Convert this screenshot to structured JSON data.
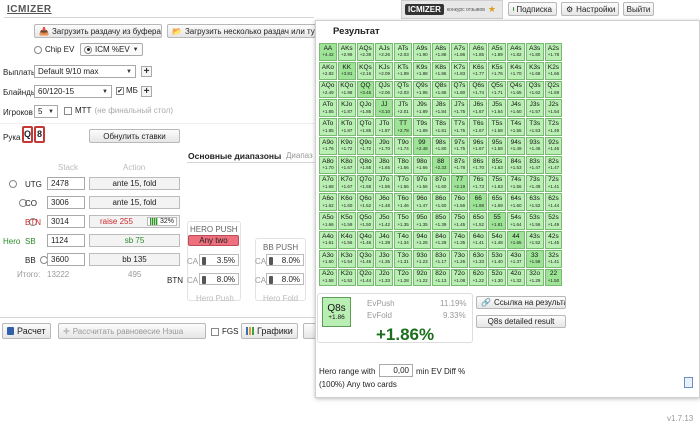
{
  "app": {
    "logo": "ICMIZER",
    "version": "v1.7.13"
  },
  "toolbar": {
    "load_clipboard": "Загрузить раздачу из буфера",
    "load_many": "Загрузить несколько раздач или тур"
  },
  "header": {
    "brand_logo": "ICMIZER",
    "brand_sub": "конкурс отзывов",
    "subscribe": "Подписка",
    "settings": "Настройки",
    "exit": "Выйти"
  },
  "settings": {
    "mode_chip": "Chip EV",
    "mode_icm": "ICM %EV",
    "payouts_label": "Выплаты",
    "payouts_value": "Default 9/10 max",
    "blinds_label": "Блайнды",
    "blinds_value": "60/120-15",
    "mb_label": "МБ",
    "players_label": "Игроков",
    "players_value": "5",
    "mtt_label": "MTT",
    "mtt_hint": "(не финальный стол)",
    "hand_label": "Рука",
    "reset_bets": "Обнулить ставки"
  },
  "hand_cards": [
    "Q",
    "8"
  ],
  "tabs": {
    "main_ranges": "Основные диапазоны",
    "second": "Диапаз"
  },
  "table": {
    "col_stack": "Stack",
    "col_action": "Action",
    "rows": [
      {
        "pos": "UTG",
        "stack": "2478",
        "action": "ante 15, fold"
      },
      {
        "pos": "CO",
        "stack": "3006",
        "action": "ante 15, fold"
      },
      {
        "pos": "BTN",
        "stack": "3014",
        "action": "raise 255",
        "pct": "32%"
      },
      {
        "hero": "Hero",
        "pos": "SB",
        "stack": "1124",
        "action": "sb 75"
      },
      {
        "pos": "BB",
        "stack": "3600",
        "action": "bb 135"
      }
    ],
    "total_label": "Итого:",
    "total_value": "13222",
    "total_other": "495"
  },
  "push": {
    "hero_title": "HERO PUSH",
    "hero_range": "Any two",
    "ca_label": "CA",
    "hero_ca": "3.5%",
    "btn_label": "BTN",
    "btn_ca": "8.0%",
    "hero_foot": "Hero Push",
    "bb_title": "BB PUSH",
    "bb_ca": "8.0%",
    "bb_ca2": "8.0%",
    "bb_foot": "Hero Fold"
  },
  "bottom": {
    "calc": "Расчет",
    "nash": "Рассчитать равновесие Нэша",
    "fgs": "FGS",
    "graphs": "Графики"
  },
  "result": {
    "title": "Результат",
    "hand": "Q8s",
    "hand_diff": "+1.86",
    "ev_push_label": "EvPush",
    "ev_push_value": "11.19%",
    "ev_fold_label": "EvFold",
    "ev_fold_value": "9.33%",
    "big_value": "+1.86%",
    "link_button": "Ссылка на результат",
    "detail_button": "Q8s detailed result",
    "range_label": "Hero range with",
    "range_value": "0,00",
    "range_suffix": "min EV Diff %",
    "range_result": "(100%) Any two cards"
  },
  "hand_grid": [
    [
      [
        "AA",
        "+4.42"
      ],
      [
        "AKs",
        "+2.99"
      ],
      [
        "AQs",
        "+2.39"
      ],
      [
        "AJs",
        "+2.26"
      ],
      [
        "ATs",
        "+2.03"
      ],
      [
        "A9s",
        "+1.90"
      ],
      [
        "A8s",
        "+1.88"
      ],
      [
        "A7s",
        "+1.86"
      ],
      [
        "A6s",
        "+1.85"
      ],
      [
        "A5s",
        "+1.89"
      ],
      [
        "A4s",
        "+1.82"
      ],
      [
        "A3s",
        "+1.80"
      ],
      [
        "A2s",
        "+1.78"
      ]
    ],
    [
      [
        "AKo",
        "+2.82"
      ],
      [
        "KK",
        "+3.81"
      ],
      [
        "KQs",
        "+2.16"
      ],
      [
        "KJs",
        "+2.09"
      ],
      [
        "KTs",
        "+1.99"
      ],
      [
        "K9s",
        "+1.88"
      ],
      [
        "K8s",
        "+1.86"
      ],
      [
        "K7s",
        "+1.83"
      ],
      [
        "K6s",
        "+1.77"
      ],
      [
        "K5s",
        "+1.76"
      ],
      [
        "K4s",
        "+1.70"
      ],
      [
        "K3s",
        "+1.68"
      ],
      [
        "K2s",
        "+1.66"
      ]
    ],
    [
      [
        "AQo",
        "+2.49"
      ],
      [
        "KQo",
        "+1.98"
      ],
      [
        "QQ",
        "+3.45"
      ],
      [
        "QJs",
        "+2.06"
      ],
      [
        "QTs",
        "+2.03"
      ],
      [
        "Q9s",
        "+1.95"
      ],
      [
        "Q8s",
        "+1.86"
      ],
      [
        "Q7s",
        "+1.80"
      ],
      [
        "Q6s",
        "+1.74"
      ],
      [
        "Q5s",
        "+1.71"
      ],
      [
        "Q4s",
        "+1.65"
      ],
      [
        "Q3s",
        "+1.62"
      ],
      [
        "Q2s",
        "+1.59"
      ]
    ],
    [
      [
        "ATo",
        "+1.85"
      ],
      [
        "KJo",
        "+1.87"
      ],
      [
        "QJo",
        "+1.85"
      ],
      [
        "JJ",
        "+3.10"
      ],
      [
        "JTs",
        "+2.01"
      ],
      [
        "J9s",
        "+1.89"
      ],
      [
        "J8s",
        "+1.84"
      ],
      [
        "J7s",
        "+1.75"
      ],
      [
        "J6s",
        "+1.67"
      ],
      [
        "J5s",
        "+1.64"
      ],
      [
        "J4s",
        "+1.60"
      ],
      [
        "J3s",
        "+1.57"
      ],
      [
        "J2s",
        "+1.54"
      ]
    ],
    [
      [
        "ATo",
        "+1.85"
      ],
      [
        "KTo",
        "+1.87"
      ],
      [
        "QTo",
        "+1.85"
      ],
      [
        "JTo",
        "+1.87"
      ],
      [
        "TT",
        "+2.78"
      ],
      [
        "T9s",
        "+1.89"
      ],
      [
        "T8s",
        "+1.81"
      ],
      [
        "T7s",
        "+1.75"
      ],
      [
        "T6s",
        "+1.67"
      ],
      [
        "T5s",
        "+1.58"
      ],
      [
        "T4s",
        "+1.55"
      ],
      [
        "T3s",
        "+1.53"
      ],
      [
        "T2s",
        "+1.49"
      ]
    ],
    [
      [
        "A9o",
        "+1.76"
      ],
      [
        "K9o",
        "+1.72"
      ],
      [
        "Q9o",
        "+1.72"
      ],
      [
        "J9o",
        "+1.70"
      ],
      [
        "T9o",
        "+1.74"
      ],
      [
        "99",
        "+2.48"
      ],
      [
        "98s",
        "+1.80"
      ],
      [
        "97s",
        "+1.75"
      ],
      [
        "96s",
        "+1.67"
      ],
      [
        "95s",
        "+1.58"
      ],
      [
        "94s",
        "+1.49"
      ],
      [
        "93s",
        "+1.46"
      ],
      [
        "92s",
        "+1.46"
      ]
    ],
    [
      [
        "A8o",
        "+1.70"
      ],
      [
        "K8o",
        "+1.67"
      ],
      [
        "Q8o",
        "+1.65"
      ],
      [
        "J8o",
        "+1.65"
      ],
      [
        "T8o",
        "+1.66"
      ],
      [
        "98o",
        "+1.66"
      ],
      [
        "88",
        "+2.33"
      ],
      [
        "87s",
        "+1.78"
      ],
      [
        "86s",
        "+1.70"
      ],
      [
        "85s",
        "+1.63"
      ],
      [
        "84s",
        "+1.53"
      ],
      [
        "83s",
        "+1.47"
      ],
      [
        "82s",
        "+1.47"
      ]
    ],
    [
      [
        "A7o",
        "+1.68"
      ],
      [
        "K7o",
        "+1.67"
      ],
      [
        "Q7o",
        "+1.58"
      ],
      [
        "J7o",
        "+1.56"
      ],
      [
        "T7o",
        "+1.56"
      ],
      [
        "97o",
        "+1.56"
      ],
      [
        "87o",
        "+1.60"
      ],
      [
        "77",
        "+2.19"
      ],
      [
        "76s",
        "+1.73"
      ],
      [
        "75s",
        "+1.63"
      ],
      [
        "74s",
        "+1.56"
      ],
      [
        "73s",
        "+1.49"
      ],
      [
        "72s",
        "+1.41"
      ]
    ],
    [
      [
        "A6o",
        "+1.62"
      ],
      [
        "K6o",
        "+1.60"
      ],
      [
        "Q6o",
        "+1.52"
      ],
      [
        "J6o",
        "+1.48"
      ],
      [
        "T6o",
        "+1.46"
      ],
      [
        "96o",
        "+1.47"
      ],
      [
        "86o",
        "+1.50"
      ],
      [
        "76o",
        "+1.56"
      ],
      [
        "66",
        "+1.98"
      ],
      [
        "65s",
        "+1.69"
      ],
      [
        "64s",
        "+1.60"
      ],
      [
        "63s",
        "+1.52"
      ],
      [
        "62s",
        "+1.44"
      ]
    ],
    [
      [
        "A5o",
        "+1.66"
      ],
      [
        "K5o",
        "+1.59"
      ],
      [
        "Q5o",
        "+1.50"
      ],
      [
        "J5o",
        "+1.42"
      ],
      [
        "T5o",
        "+1.35"
      ],
      [
        "95o",
        "+1.35"
      ],
      [
        "85o",
        "+1.39"
      ],
      [
        "75o",
        "+1.45"
      ],
      [
        "65o",
        "+1.52"
      ],
      [
        "55",
        "+1.81"
      ],
      [
        "54s",
        "+1.64"
      ],
      [
        "53s",
        "+1.56"
      ],
      [
        "52s",
        "+1.49"
      ]
    ],
    [
      [
        "A4o",
        "+1.61"
      ],
      [
        "K4o",
        "+1.56"
      ],
      [
        "Q4o",
        "+1.46"
      ],
      [
        "J4o",
        "+1.39"
      ],
      [
        "T4o",
        "+1.34"
      ],
      [
        "94o",
        "+1.26"
      ],
      [
        "84o",
        "+1.28"
      ],
      [
        "74o",
        "+1.35"
      ],
      [
        "64o",
        "+1.41"
      ],
      [
        "54o",
        "+1.48"
      ],
      [
        "44",
        "+1.65"
      ],
      [
        "43s",
        "+1.52"
      ],
      [
        "42s",
        "+1.45"
      ]
    ],
    [
      [
        "A3o",
        "+1.60"
      ],
      [
        "K3o",
        "+1.54"
      ],
      [
        "Q3o",
        "+1.46"
      ],
      [
        "J3o",
        "+1.35"
      ],
      [
        "T3o",
        "+1.31"
      ],
      [
        "93o",
        "+1.23"
      ],
      [
        "83o",
        "+1.17"
      ],
      [
        "73o",
        "+1.26"
      ],
      [
        "63o",
        "+1.33"
      ],
      [
        "53o",
        "+1.40"
      ],
      [
        "43o",
        "+1.37"
      ],
      [
        "33",
        "+1.58"
      ],
      [
        "32s",
        "+1.41"
      ]
    ],
    [
      [
        "A2o",
        "+1.58"
      ],
      [
        "K2o",
        "+1.52"
      ],
      [
        "Q2o",
        "+1.44"
      ],
      [
        "J2o",
        "+1.33"
      ],
      [
        "T2o",
        "+1.28"
      ],
      [
        "92o",
        "+1.22"
      ],
      [
        "82o",
        "+1.13"
      ],
      [
        "72o",
        "+1.08"
      ],
      [
        "62o",
        "+1.22"
      ],
      [
        "52o",
        "+1.30"
      ],
      [
        "42o",
        "+1.32"
      ],
      [
        "32o",
        "+1.29"
      ],
      [
        "22",
        "+1.50"
      ]
    ]
  ],
  "colors": {
    "cell_bg": "#b9efb2",
    "cell_border": "#79b973",
    "big_value": "#1c6e1c",
    "raise": "#cc2a2a",
    "hero_range_bg": "#ee6f7d",
    "call": "#2a8a2a"
  }
}
